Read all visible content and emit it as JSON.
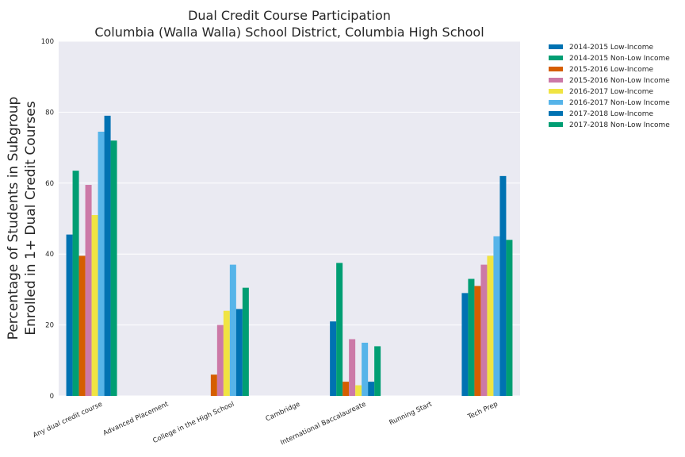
{
  "chart_data": {
    "type": "bar",
    "title": "Dual Credit Course Participation",
    "subtitle": "Columbia (Walla Walla) School District, Columbia High School",
    "xlabel": "",
    "ylabel_line1": "Percentage of Students in Subgroup",
    "ylabel_line2": "Enrolled in 1+ Dual Credit Courses",
    "ylim": [
      0,
      100
    ],
    "yticks": [
      "0",
      "20",
      "40",
      "60",
      "80",
      "100"
    ],
    "grid": true,
    "legend_position": "outside-top-right",
    "categories": [
      "Any dual credit course",
      "Advanced Placement",
      "College in the High School",
      "Cambridge",
      "International Baccalaureate",
      "Running Start",
      "Tech Prep"
    ],
    "series": [
      {
        "name": "2014-2015 Low-Income",
        "color": "#0072b2",
        "values": [
          45.5,
          0,
          0,
          0,
          21,
          0,
          29
        ]
      },
      {
        "name": "2014-2015 Non-Low Income",
        "color": "#009e73",
        "values": [
          63.5,
          0,
          0,
          0,
          37.5,
          0,
          33
        ]
      },
      {
        "name": "2015-2016 Low-Income",
        "color": "#d55e00",
        "values": [
          39.5,
          0,
          6,
          0,
          4,
          0,
          31
        ]
      },
      {
        "name": "2015-2016 Non-Low Income",
        "color": "#cc79a7",
        "values": [
          59.5,
          0,
          20,
          0,
          16,
          0,
          37
        ]
      },
      {
        "name": "2016-2017 Low-Income",
        "color": "#f0e442",
        "values": [
          51,
          0,
          24,
          0,
          3,
          0,
          39.5
        ]
      },
      {
        "name": "2016-2017 Non-Low Income",
        "color": "#56b4e9",
        "values": [
          74.5,
          0,
          37,
          0,
          15,
          0,
          45
        ]
      },
      {
        "name": "2017-2018 Low-Income",
        "color": "#0072b2",
        "values": [
          79,
          0,
          24.5,
          0,
          4,
          0,
          62
        ]
      },
      {
        "name": "2017-2018 Non-Low Income",
        "color": "#009e73",
        "values": [
          72,
          0,
          30.5,
          0,
          14,
          0,
          44
        ]
      }
    ]
  }
}
